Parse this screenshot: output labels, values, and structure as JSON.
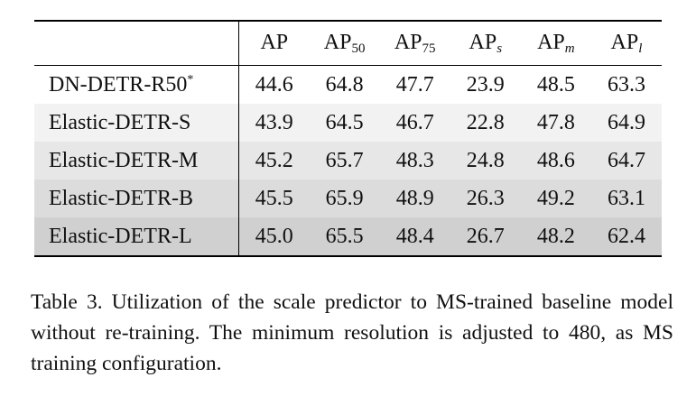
{
  "table": {
    "columns": [
      {
        "base": "AP",
        "sub": "",
        "sub_italic": false
      },
      {
        "base": "AP",
        "sub": "50",
        "sub_italic": false
      },
      {
        "base": "AP",
        "sub": "75",
        "sub_italic": false
      },
      {
        "base": "AP",
        "sub": "s",
        "sub_italic": true
      },
      {
        "base": "AP",
        "sub": "m",
        "sub_italic": true
      },
      {
        "base": "AP",
        "sub": "l",
        "sub_italic": true
      }
    ],
    "rows": [
      {
        "model": "DN-DETR-R50",
        "marker": "*",
        "shade": "#ffffff",
        "values": [
          "44.6",
          "64.8",
          "47.7",
          "23.9",
          "48.5",
          "63.3"
        ],
        "bold_cells": []
      },
      {
        "model": "Elastic-DETR-S",
        "marker": "",
        "shade": "#f2f2f2",
        "values": [
          "43.9",
          "64.5",
          "46.7",
          "22.8",
          "47.8",
          "64.9"
        ],
        "bold_cells": []
      },
      {
        "model": "Elastic-DETR-M",
        "marker": "",
        "shade": "#e7e7e7",
        "values": [
          "45.2",
          "65.7",
          "48.3",
          "24.8",
          "48.6",
          "64.7"
        ],
        "bold_cells": []
      },
      {
        "model": "Elastic-DETR-B",
        "marker": "",
        "shade": "#dcdcdc",
        "values": [
          "45.5",
          "65.9",
          "48.9",
          "26.3",
          "49.2",
          "63.1"
        ],
        "bold_cells": [
          0
        ]
      },
      {
        "model": "Elastic-DETR-L",
        "marker": "",
        "shade": "#d0d0d0",
        "values": [
          "45.0",
          "65.5",
          "48.4",
          "26.7",
          "48.2",
          "62.4"
        ],
        "bold_cells": []
      }
    ]
  },
  "caption": "Table 3. Utilization of the scale predictor to MS-trained baseline model without re-training. The minimum resolution is adjusted to 480, as MS training configuration."
}
